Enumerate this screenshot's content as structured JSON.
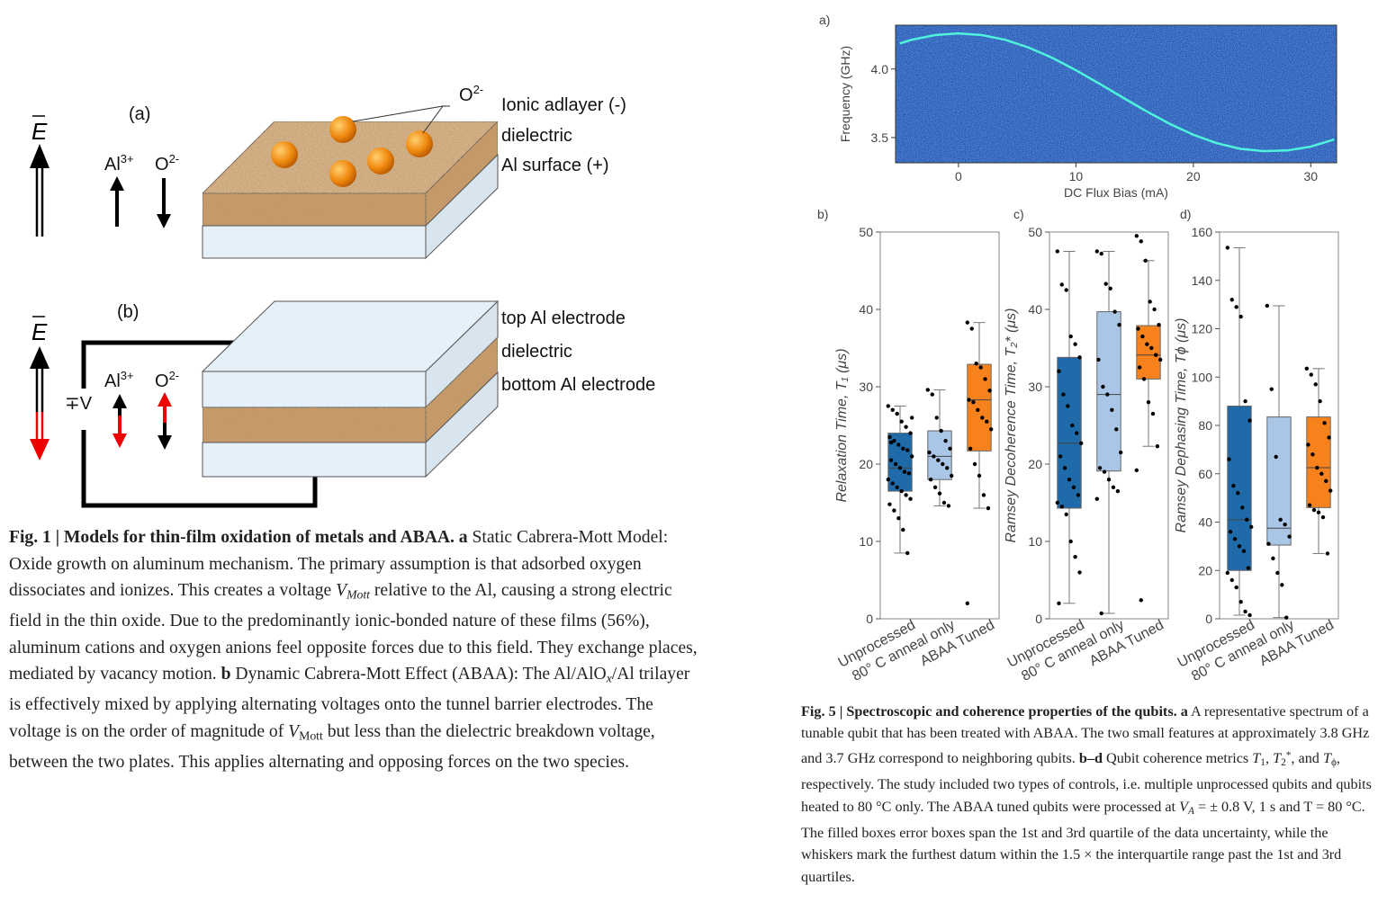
{
  "figure1": {
    "panel_a": "(a)",
    "panel_b": "(b)",
    "field": "E",
    "ion_al": "Al",
    "ion_al_charge": "3+",
    "ion_o": "O",
    "ion_o_charge": "2-",
    "labels_a": [
      "Ionic adlayer (-)",
      "dielectric",
      "Al surface (+)"
    ],
    "labels_b": [
      "top Al electrode",
      "dielectric",
      "bottom Al electrode"
    ],
    "voltage": "∓V",
    "caption": [
      {
        "text": "Fig. 1 | Models for thin-film oxidation of metals and ABAA. a",
        "style": "bold"
      },
      {
        "text": " Static Cabrera-Mott Model: Oxide growth on aluminum mechanism. The primary assumption is that adsorbed oxygen dissociates and ionizes. This creates a voltage ",
        "style": "plain"
      },
      {
        "text": "V",
        "style": "italic"
      },
      {
        "text": "Mott",
        "style": "sub-italic"
      },
      {
        "text": " relative to the Al, causing a strong electric field in the thin oxide. Due to the predominantly ionic-bonded nature of these films (56%), aluminum cations and oxygen anions feel opposite forces due to this field. They exchange places, mediated by vacancy motion. ",
        "style": "plain"
      },
      {
        "text": "b",
        "style": "bold"
      },
      {
        "text": " Dynamic Cabrera-Mott Effect (ABAA): The Al/AlO",
        "style": "plain"
      },
      {
        "text": "x",
        "style": "sub-italic"
      },
      {
        "text": "/Al trilayer is effectively mixed by applying alternating voltages onto the tunnel barrier electrodes. The voltage is on the order of magnitude of ",
        "style": "plain"
      },
      {
        "text": "V",
        "style": "italic"
      },
      {
        "text": "Mott",
        "style": "sub"
      },
      {
        "text": " but less than the dielectric breakdown voltage, between the two plates. This applies alternating and opposing forces on the two species.",
        "style": "plain"
      }
    ]
  },
  "chart_data": [
    {
      "type": "line",
      "panel": "a)",
      "xlabel": "DC Flux Bias (mA)",
      "ylabel": "Frequency (GHz)",
      "x": [
        -5,
        -4,
        -2,
        0,
        2,
        4,
        6,
        8,
        10,
        12,
        14,
        16,
        18,
        20,
        22,
        24,
        26,
        28,
        30,
        32
      ],
      "values": [
        4.187,
        4.213,
        4.248,
        4.26,
        4.248,
        4.213,
        4.156,
        4.081,
        3.991,
        3.893,
        3.792,
        3.692,
        3.6,
        3.521,
        3.459,
        3.418,
        3.401,
        3.406,
        3.434,
        3.486
      ],
      "color": "#4ff3dc",
      "background": "#1d4fb0",
      "xlim": [
        -5.36,
        32.2
      ],
      "ylim": [
        3.316,
        4.32
      ],
      "xticks": [
        0,
        10,
        20,
        30
      ],
      "yticks": [
        {
          "value": 3.5,
          "label": "3.5"
        },
        {
          "value": 4,
          "label": "4.0"
        }
      ]
    },
    {
      "type": "box",
      "panel": "b)",
      "ylabel": "Relaxation Time, T₁ (μs)",
      "categories": [
        "Unprocessed",
        "80° C anneal only",
        "ABAA Tuned"
      ],
      "ylim": [
        0,
        50
      ],
      "yticks": [
        0,
        10,
        20,
        30,
        40,
        50
      ],
      "boxes": [
        {
          "color": "#1f6aa8",
          "whisker_low": 8.5,
          "q1": 16.5,
          "median": 19.5,
          "q3": 24,
          "whisker_high": 27.5,
          "points": [
            27.5,
            27,
            26.5,
            25.5,
            24.8,
            24,
            23.5,
            23,
            22.5,
            22,
            21.8,
            21,
            20.5,
            20,
            19.5,
            19,
            18.8,
            18,
            17.5,
            17,
            16.5,
            16,
            15.5,
            14.8,
            14,
            13,
            11.5,
            8.5,
            26,
            22.8
          ]
        },
        {
          "color": "#aac6e6",
          "whisker_low": 14.6,
          "q1": 18,
          "median": 21,
          "q3": 24.3,
          "whisker_high": 29.6,
          "points": [
            29.6,
            29,
            26,
            24.3,
            23,
            22,
            21.5,
            21,
            20.5,
            20,
            19.5,
            18.5,
            18,
            17,
            16.2,
            15,
            14.6
          ]
        },
        {
          "color": "#f7821b",
          "whisker_low": 14.3,
          "q1": 21.7,
          "median": 28.3,
          "q3": 32.9,
          "whisker_high": 38.3,
          "points": [
            38.3,
            37.5,
            33,
            32.5,
            31,
            29.5,
            28.3,
            28,
            27,
            26,
            25.5,
            24.5,
            22,
            20,
            18.5,
            16,
            14.3,
            2
          ]
        }
      ]
    },
    {
      "type": "box",
      "panel": "c)",
      "ylabel": "Ramsey Decoherence Time, T₂* (μs)",
      "categories": [
        "Unprocessed",
        "80° C anneal only",
        "ABAA Tuned"
      ],
      "ylim": [
        0,
        50
      ],
      "yticks": [
        0,
        10,
        20,
        30,
        40,
        50
      ],
      "boxes": [
        {
          "color": "#1f6aa8",
          "whisker_low": 2,
          "q1": 14.3,
          "median": 22.7,
          "q3": 33.8,
          "whisker_high": 47.5,
          "points": [
            47.5,
            43.2,
            42.5,
            36.5,
            35.5,
            33.8,
            32,
            29,
            27.5,
            25,
            24,
            22.7,
            21,
            19.5,
            18,
            17,
            16,
            15,
            14.5,
            13.5,
            10,
            8,
            6,
            2
          ]
        },
        {
          "color": "#aac6e6",
          "whisker_low": 0.7,
          "q1": 19.1,
          "median": 29,
          "q3": 39.7,
          "whisker_high": 47.5,
          "points": [
            47.5,
            47.2,
            43.3,
            42.7,
            39.7,
            38,
            33.5,
            30,
            29,
            27,
            24.5,
            21.5,
            19.5,
            19,
            18,
            17,
            16.5,
            15.5,
            0.7
          ]
        },
        {
          "color": "#f7821b",
          "whisker_low": 22.3,
          "q1": 31,
          "median": 34.1,
          "q3": 37.9,
          "whisker_high": 46.3,
          "points": [
            49.5,
            48.8,
            46.3,
            41,
            40,
            38,
            37.5,
            36.5,
            35.5,
            35,
            34.1,
            33.5,
            32.5,
            31,
            28,
            26.5,
            22.3,
            19.2,
            2.4
          ]
        }
      ]
    },
    {
      "type": "box",
      "panel": "d)",
      "ylabel": "Ramsey Dephasing Time, Tϕ (μs)",
      "categories": [
        "Unprocessed",
        "80° C anneal only",
        "ABAA Tuned"
      ],
      "ylim": [
        0,
        160
      ],
      "yticks": [
        0,
        20,
        40,
        60,
        80,
        100,
        120,
        140,
        160
      ],
      "boxes": [
        {
          "color": "#1f6aa8",
          "whisker_low": 1.5,
          "q1": 20,
          "median": 41,
          "q3": 88,
          "whisker_high": 153.5,
          "points": [
            153.5,
            132,
            129,
            125,
            90,
            82,
            66,
            55,
            52,
            46,
            41,
            38,
            36,
            33,
            30,
            28,
            21,
            19,
            16,
            13,
            7,
            3,
            1.5
          ]
        },
        {
          "color": "#aac6e6",
          "whisker_low": 0.5,
          "q1": 30.5,
          "median": 37.5,
          "q3": 83.5,
          "whisker_high": 129.5,
          "points": [
            129.5,
            95,
            67,
            41,
            39,
            34,
            31,
            25,
            19,
            14,
            0.5
          ]
        },
        {
          "color": "#f7821b",
          "whisker_low": 27,
          "q1": 46,
          "median": 62.5,
          "q3": 83.5,
          "whisker_high": 103.5,
          "points": [
            103.5,
            101,
            97,
            90,
            81,
            75,
            72,
            68,
            62.5,
            60,
            57,
            53,
            47,
            45,
            44,
            42,
            27
          ]
        }
      ]
    }
  ],
  "figure5": {
    "caption": [
      {
        "text": "Fig. 5 | Spectroscopic and coherence properties of the qubits. a",
        "style": "bold"
      },
      {
        "text": " A representative spectrum of a tunable qubit that has been treated with ABAA. The two small features at approximately 3.8 GHz and 3.7 GHz correspond to neighboring qubits. ",
        "style": "plain"
      },
      {
        "text": "b–d",
        "style": "bold"
      },
      {
        "text": " Qubit coherence metrics ",
        "style": "plain"
      },
      {
        "text": "T",
        "style": "italic"
      },
      {
        "text": "1",
        "style": "sub"
      },
      {
        "text": ", ",
        "style": "plain"
      },
      {
        "text": "T",
        "style": "italic"
      },
      {
        "text": "2",
        "style": "sub"
      },
      {
        "text": "*",
        "style": "sup"
      },
      {
        "text": ", and ",
        "style": "plain"
      },
      {
        "text": "T",
        "style": "italic"
      },
      {
        "text": "ϕ",
        "style": "sub"
      },
      {
        "text": ", respectively. The study included two types of controls, i.e. multiple unprocessed qubits and qubits heated to 80 °C only. The ABAA tuned qubits were processed at ",
        "style": "plain"
      },
      {
        "text": "V",
        "style": "italic"
      },
      {
        "text": "A",
        "style": "sub-italic"
      },
      {
        "text": " = ± 0.8 V, 1 s and T = 80 °C. The filled boxes error boxes span the 1st and 3rd quartile of the data uncertainty, while the whiskers mark the furthest datum within the 1.5 × the interquartile range past the 1st and 3rd quartiles.",
        "style": "plain"
      }
    ]
  }
}
